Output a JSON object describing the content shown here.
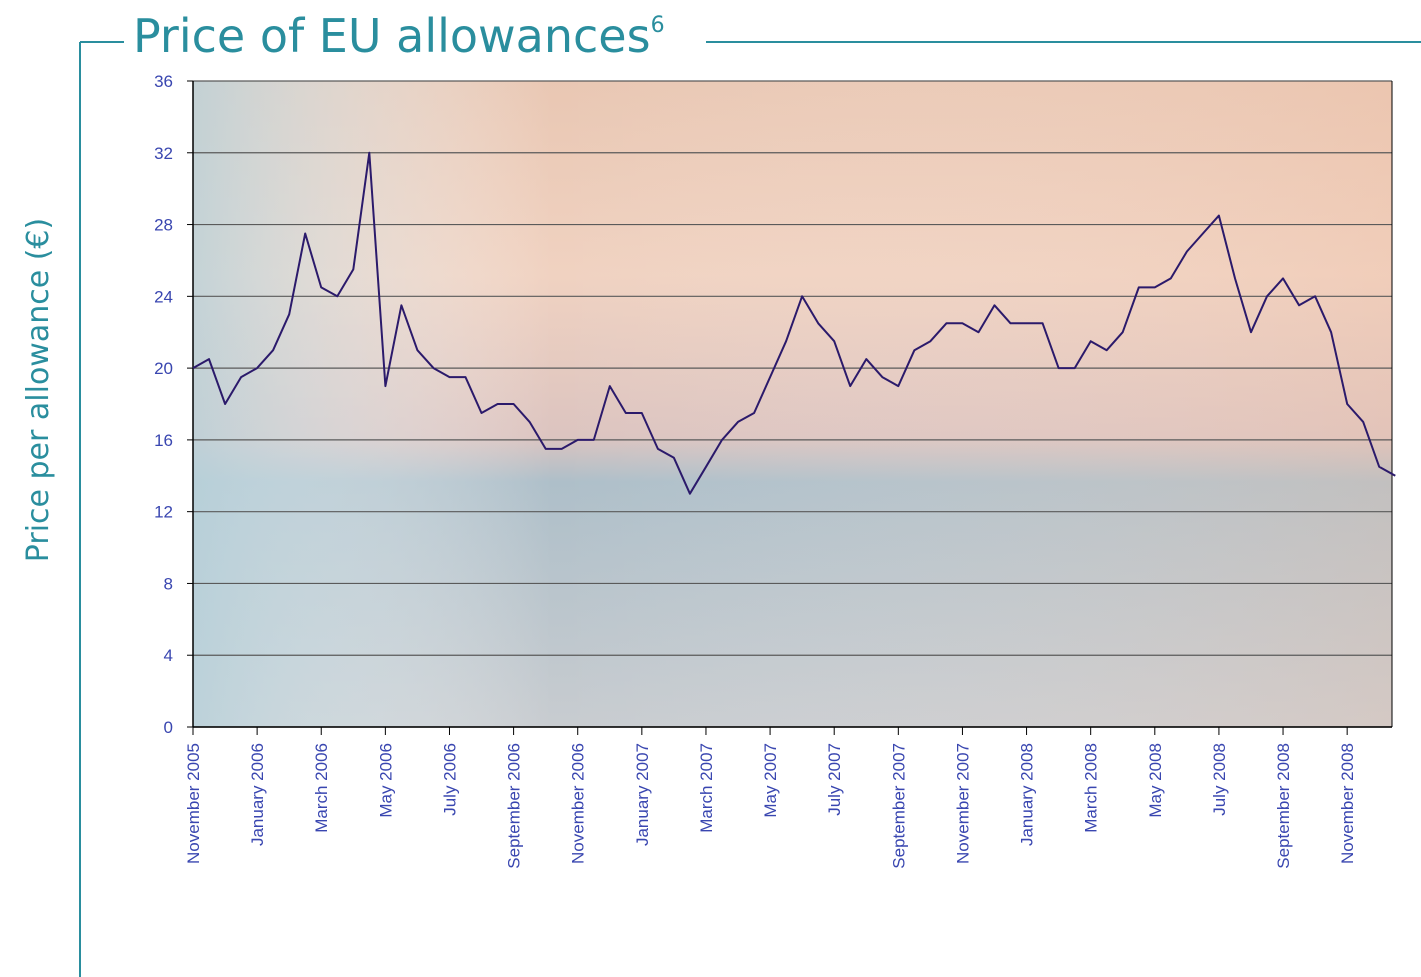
{
  "chart_data": {
    "type": "line",
    "title": "Price of EU allowances",
    "title_footnote": "6",
    "y_label": "Price per allowance (€)",
    "categories": [
      "November 2005",
      null,
      null,
      null,
      "January 2006",
      null,
      null,
      null,
      "March 2006",
      null,
      null,
      null,
      "May 2006",
      null,
      null,
      null,
      "July 2006",
      null,
      null,
      null,
      "September 2006",
      null,
      null,
      null,
      "November 2006",
      null,
      null,
      null,
      "January 2007",
      null,
      null,
      null,
      "March 2007",
      null,
      null,
      null,
      "May 2007",
      null,
      null,
      null,
      "July 2007",
      null,
      null,
      null,
      "September 2007",
      null,
      null,
      null,
      "November 2007",
      null,
      null,
      null,
      "January 2008",
      null,
      null,
      null,
      "March 2008",
      null,
      null,
      null,
      "May 2008",
      null,
      null,
      null,
      "July 2008",
      null,
      null,
      null,
      "September 2008",
      null,
      null,
      null,
      "November 2008",
      null,
      null,
      null
    ],
    "values": [
      20,
      20.5,
      18,
      19.5,
      20,
      21,
      23,
      27.5,
      24.5,
      24,
      25.5,
      32,
      19,
      23.5,
      21,
      20,
      19.5,
      19.5,
      17.5,
      18,
      18,
      17,
      15.5,
      15.5,
      16,
      16,
      19,
      17.5,
      17.5,
      15.5,
      15,
      13,
      14.5,
      16,
      17,
      17.5,
      19.5,
      21.5,
      24,
      22.5,
      21.5,
      19,
      20.5,
      19.5,
      19,
      21,
      21.5,
      22.5,
      22.5,
      22,
      23.5,
      22.5,
      22.5,
      22.5,
      20,
      20,
      21.5,
      21,
      22,
      24.5,
      24.5,
      25,
      26.5,
      27.5,
      28.5,
      25,
      22,
      24,
      25,
      23.5,
      24,
      22,
      18,
      17,
      14.5,
      14
    ],
    "color": "#2b1a6b",
    "ylim": [
      0,
      36
    ],
    "yticks": [
      0,
      4,
      8,
      12,
      16,
      20,
      24,
      28,
      32,
      36
    ],
    "grid": true
  }
}
